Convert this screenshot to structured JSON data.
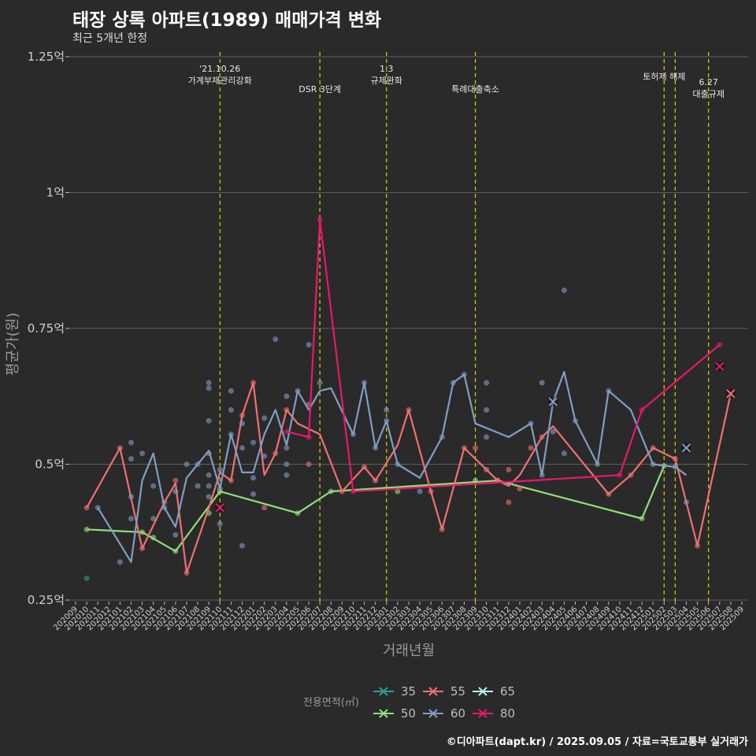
{
  "header": {
    "title": "태장 상록 아파트(1989) 매매가격 변화",
    "subtitle": "최근 5개년 한정"
  },
  "footer": "©디아파트(dapt.kr) / 2025.09.05 / 자료=국토교통부 실거래가",
  "colors": {
    "background": "#2b2a2a",
    "grid": "#5e5e5e",
    "event_line": "#d4d400",
    "s35": "#2a9d8f",
    "s50": "#8fe07a",
    "s55": "#f07070",
    "s60": "#7f9ec4",
    "s65": "#b8f0f0",
    "s80": "#e8186e"
  },
  "chart_data": {
    "type": "line",
    "xlabel": "거래년월",
    "ylabel": "평균가(원)",
    "ylim": [
      0.25,
      1.25
    ],
    "yticks": [
      {
        "v": 0.25,
        "label": "0.25억"
      },
      {
        "v": 0.5,
        "label": "0.5억"
      },
      {
        "v": 0.75,
        "label": "0.75억"
      },
      {
        "v": 1.0,
        "label": "1억"
      },
      {
        "v": 1.25,
        "label": "1.25억"
      }
    ],
    "categories": [
      "202009",
      "202010",
      "202011",
      "202012",
      "202101",
      "202102",
      "202103",
      "202104",
      "202105",
      "202106",
      "202107",
      "202108",
      "202109",
      "202110",
      "202111",
      "202112",
      "202201",
      "202202",
      "202203",
      "202204",
      "202205",
      "202206",
      "202207",
      "202208",
      "202209",
      "202210",
      "202211",
      "202212",
      "202301",
      "202302",
      "202303",
      "202304",
      "202305",
      "202306",
      "202307",
      "202308",
      "202309",
      "202310",
      "202311",
      "202312",
      "202401",
      "202402",
      "202403",
      "202404",
      "202405",
      "202406",
      "202407",
      "202408",
      "202409",
      "202410",
      "202411",
      "202412",
      "202501",
      "202502",
      "202503",
      "202504",
      "202505",
      "202506",
      "202507",
      "202508",
      "202509"
    ],
    "legend_title": "전용면적(㎡)",
    "legend": [
      "35",
      "55",
      "65",
      "50",
      "60",
      "80"
    ],
    "events": [
      {
        "x": 13.0,
        "lines": [
          "'21.10.26",
          "가계부채관리강화"
        ]
      },
      {
        "x": 22.0,
        "lines": [
          "DSR 3단계"
        ]
      },
      {
        "x": 28.0,
        "lines": [
          "1.3",
          "규제완화"
        ]
      },
      {
        "x": 36.0,
        "lines": [
          "특례대출축소"
        ]
      },
      {
        "x": 53.0,
        "lines": [
          "토허제 해제"
        ]
      },
      {
        "x": 54.0,
        "lines": []
      },
      {
        "x": 57.0,
        "lines": [
          "6.27",
          "대출규제"
        ]
      }
    ],
    "series": [
      {
        "name": "35",
        "key": "s35",
        "points": [],
        "scatter": [
          [
            1,
            0.29
          ]
        ]
      },
      {
        "name": "50",
        "key": "s50",
        "points": [
          [
            1,
            0.38
          ],
          [
            6,
            0.375
          ],
          [
            9,
            0.34
          ],
          [
            13,
            0.45
          ],
          [
            20,
            0.41
          ],
          [
            23,
            0.45
          ],
          [
            38,
            0.47
          ],
          [
            51,
            0.4
          ],
          [
            53,
            0.497
          ]
        ],
        "scatter": [
          [
            1,
            0.38
          ],
          [
            6,
            0.375
          ],
          [
            7,
            0.365
          ],
          [
            9,
            0.34
          ],
          [
            12,
            0.41
          ],
          [
            13,
            0.45
          ],
          [
            20,
            0.41
          ],
          [
            23,
            0.45
          ],
          [
            29,
            0.45
          ],
          [
            36,
            0.47
          ],
          [
            38,
            0.47
          ],
          [
            51,
            0.4
          ],
          [
            53,
            0.497
          ]
        ]
      },
      {
        "name": "55",
        "key": "s55",
        "points": [
          [
            1,
            0.42
          ],
          [
            4,
            0.53
          ],
          [
            6,
            0.345
          ],
          [
            8,
            0.43
          ],
          [
            9,
            0.465
          ],
          [
            10,
            0.3
          ],
          [
            12,
            0.42
          ],
          [
            13,
            0.485
          ],
          [
            14,
            0.47
          ],
          [
            15,
            0.59
          ],
          [
            16,
            0.65
          ],
          [
            17,
            0.48
          ],
          [
            18,
            0.52
          ],
          [
            19,
            0.6
          ],
          [
            20,
            0.575
          ],
          [
            22,
            0.555
          ],
          [
            24,
            0.45
          ],
          [
            26,
            0.495
          ],
          [
            27,
            0.47
          ],
          [
            29,
            0.535
          ],
          [
            30,
            0.6
          ],
          [
            32,
            0.45
          ],
          [
            33,
            0.38
          ],
          [
            35,
            0.53
          ],
          [
            37,
            0.49
          ],
          [
            38,
            0.47
          ],
          [
            39,
            0.46
          ],
          [
            40,
            0.48
          ],
          [
            42,
            0.55
          ],
          [
            43,
            0.57
          ],
          [
            48,
            0.445
          ],
          [
            50,
            0.48
          ],
          [
            52,
            0.53
          ],
          [
            54,
            0.51
          ],
          [
            56,
            0.35
          ],
          [
            59,
            0.63
          ]
        ],
        "scatter": [
          [
            1,
            0.42
          ],
          [
            4,
            0.53
          ],
          [
            6,
            0.345
          ],
          [
            8,
            0.43
          ],
          [
            9,
            0.47
          ],
          [
            10,
            0.3
          ],
          [
            12,
            0.52
          ],
          [
            14,
            0.47
          ],
          [
            15,
            0.59
          ],
          [
            16,
            0.65
          ],
          [
            17,
            0.42
          ],
          [
            18,
            0.52
          ],
          [
            19,
            0.6
          ],
          [
            21,
            0.61
          ],
          [
            21,
            0.5
          ],
          [
            24,
            0.45
          ],
          [
            26,
            0.495
          ],
          [
            27,
            0.47
          ],
          [
            30,
            0.6
          ],
          [
            32,
            0.45
          ],
          [
            33,
            0.38
          ],
          [
            35,
            0.53
          ],
          [
            36,
            0.53
          ],
          [
            37,
            0.49
          ],
          [
            38,
            0.47
          ],
          [
            39,
            0.49
          ],
          [
            39,
            0.43
          ],
          [
            40,
            0.455
          ],
          [
            41,
            0.53
          ],
          [
            42,
            0.55
          ],
          [
            48,
            0.445
          ],
          [
            50,
            0.48
          ],
          [
            52,
            0.53
          ],
          [
            54,
            0.51
          ],
          [
            56,
            0.35
          ]
        ],
        "cross": [
          [
            59,
            0.63
          ]
        ]
      },
      {
        "name": "60",
        "key": "s60",
        "points": [
          [
            2,
            0.42
          ],
          [
            5,
            0.32
          ],
          [
            6,
            0.47
          ],
          [
            7,
            0.52
          ],
          [
            8,
            0.42
          ],
          [
            9,
            0.385
          ],
          [
            10,
            0.475
          ],
          [
            11,
            0.5
          ],
          [
            12,
            0.525
          ],
          [
            13,
            0.455
          ],
          [
            14,
            0.555
          ],
          [
            15,
            0.485
          ],
          [
            16,
            0.485
          ],
          [
            17,
            0.555
          ],
          [
            18,
            0.6
          ],
          [
            19,
            0.535
          ],
          [
            20,
            0.635
          ],
          [
            21,
            0.6
          ],
          [
            22,
            0.635
          ],
          [
            23,
            0.64
          ],
          [
            25,
            0.555
          ],
          [
            26,
            0.65
          ],
          [
            27,
            0.53
          ],
          [
            28,
            0.58
          ],
          [
            29,
            0.5
          ],
          [
            31,
            0.475
          ],
          [
            33,
            0.55
          ],
          [
            34,
            0.65
          ],
          [
            35,
            0.665
          ],
          [
            36,
            0.575
          ],
          [
            39,
            0.55
          ],
          [
            41,
            0.575
          ],
          [
            42,
            0.48
          ],
          [
            43,
            0.615
          ],
          [
            44,
            0.67
          ],
          [
            45,
            0.58
          ],
          [
            47,
            0.5
          ],
          [
            48,
            0.635
          ],
          [
            50,
            0.6
          ],
          [
            52,
            0.5
          ],
          [
            54,
            0.495
          ],
          [
            55,
            0.48
          ]
        ],
        "scatter": [
          [
            2,
            0.42
          ],
          [
            4,
            0.32
          ],
          [
            5,
            0.54
          ],
          [
            5,
            0.51
          ],
          [
            5,
            0.44
          ],
          [
            5,
            0.4
          ],
          [
            6,
            0.52
          ],
          [
            7,
            0.46
          ],
          [
            7,
            0.4
          ],
          [
            8,
            0.42
          ],
          [
            9,
            0.37
          ],
          [
            9,
            0.45
          ],
          [
            10,
            0.5
          ],
          [
            11,
            0.5
          ],
          [
            11,
            0.46
          ],
          [
            12,
            0.65
          ],
          [
            12,
            0.64
          ],
          [
            12,
            0.58
          ],
          [
            12,
            0.48
          ],
          [
            12,
            0.46
          ],
          [
            12,
            0.44
          ],
          [
            13,
            0.49
          ],
          [
            13,
            0.39
          ],
          [
            13,
            0.455
          ],
          [
            14,
            0.635
          ],
          [
            14,
            0.6
          ],
          [
            14,
            0.555
          ],
          [
            15,
            0.575
          ],
          [
            15,
            0.53
          ],
          [
            15,
            0.35
          ],
          [
            16,
            0.54
          ],
          [
            16,
            0.475
          ],
          [
            16,
            0.445
          ],
          [
            17,
            0.585
          ],
          [
            17,
            0.515
          ],
          [
            18,
            0.73
          ],
          [
            19,
            0.625
          ],
          [
            19,
            0.53
          ],
          [
            19,
            0.5
          ],
          [
            19,
            0.48
          ],
          [
            20,
            0.635
          ],
          [
            21,
            0.72
          ],
          [
            22,
            0.65
          ],
          [
            25,
            0.555
          ],
          [
            26,
            0.65
          ],
          [
            27,
            0.53
          ],
          [
            28,
            0.6
          ],
          [
            28,
            0.58
          ],
          [
            29,
            0.5
          ],
          [
            31,
            0.45
          ],
          [
            33,
            0.55
          ],
          [
            34,
            0.65
          ],
          [
            35,
            0.665
          ],
          [
            37,
            0.65
          ],
          [
            37,
            0.6
          ],
          [
            37,
            0.55
          ],
          [
            41,
            0.575
          ],
          [
            42,
            0.48
          ],
          [
            42,
            0.65
          ],
          [
            43,
            0.56
          ],
          [
            44,
            0.82
          ],
          [
            44,
            0.52
          ],
          [
            45,
            0.58
          ],
          [
            47,
            0.5
          ],
          [
            48,
            0.635
          ],
          [
            52,
            0.5
          ],
          [
            54,
            0.495
          ],
          [
            55,
            0.43
          ]
        ],
        "cross": [
          [
            43,
            0.615
          ],
          [
            55,
            0.53
          ]
        ]
      },
      {
        "name": "65",
        "key": "s65",
        "points": [],
        "scatter": []
      },
      {
        "name": "80",
        "key": "s80",
        "points": [
          [
            19,
            0.56
          ],
          [
            21,
            0.55
          ],
          [
            22,
            0.95
          ],
          [
            25,
            0.45
          ],
          [
            49,
            0.48
          ],
          [
            51,
            0.6
          ],
          [
            58,
            0.72
          ]
        ],
        "scatter": [
          [
            19,
            0.56
          ],
          [
            21,
            0.55
          ],
          [
            22,
            0.95
          ],
          [
            25,
            0.45
          ],
          [
            49,
            0.48
          ],
          [
            51,
            0.6
          ],
          [
            58,
            0.72
          ]
        ],
        "cross": [
          [
            13,
            0.42
          ],
          [
            58,
            0.68
          ]
        ]
      }
    ]
  }
}
